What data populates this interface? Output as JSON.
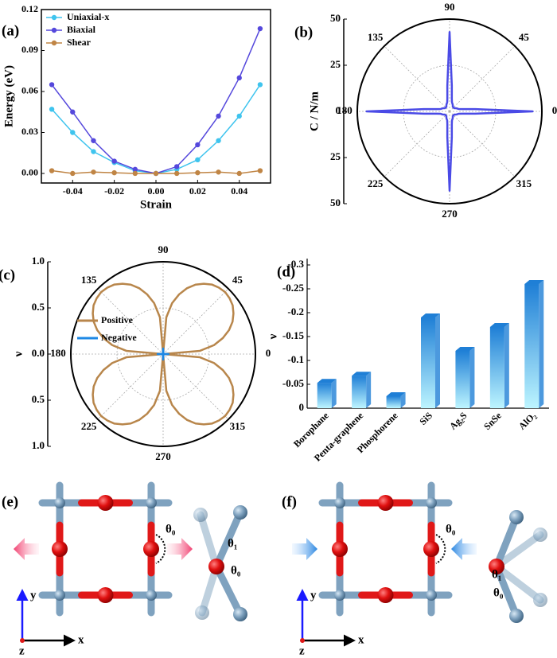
{
  "chart_data": [
    {
      "type": "line",
      "panel": "(a)",
      "xlabel": "Strain",
      "ylabel": "Energy (eV)",
      "x": [
        -0.05,
        -0.04,
        -0.03,
        -0.02,
        -0.01,
        0,
        0.01,
        0.02,
        0.03,
        0.04,
        0.05
      ],
      "series": [
        {
          "name": "Uniaxial-x",
          "color": "#3fc4ee",
          "values": [
            0.047,
            0.03,
            0.016,
            0.008,
            0.002,
            0,
            0.003,
            0.01,
            0.024,
            0.042,
            0.065
          ]
        },
        {
          "name": "Biaxial",
          "color": "#5548dc",
          "values": [
            0.065,
            0.045,
            0.024,
            0.009,
            0.003,
            0,
            0.005,
            0.021,
            0.042,
            0.07,
            0.106
          ]
        },
        {
          "name": "Shear",
          "color": "#c08545",
          "values": [
            0.002,
            0.0,
            0.001,
            0.0005,
            0.0,
            0,
            0.0,
            0.0005,
            0.001,
            0.0,
            0.002
          ]
        }
      ],
      "xlim": [
        -0.055,
        0.055
      ],
      "xticks": [
        -0.04,
        -0.02,
        {
          "value": 0,
          "label": "0.00"
        },
        0.02,
        0.04
      ],
      "ylim": [
        -0.007,
        0.12
      ],
      "yticks": [
        {
          "value": 0,
          "label": "0.00"
        },
        0.03,
        0.06,
        0.09,
        0.12
      ],
      "legend": "upper left"
    },
    {
      "type": "polar",
      "panel": "(b)",
      "ylabel": "C / N/m",
      "theta": [
        0,
        5,
        10,
        15,
        20,
        25,
        30,
        35,
        40,
        45,
        50,
        55,
        60,
        65,
        70,
        75,
        80,
        85,
        90,
        95,
        100,
        105,
        110,
        115,
        120,
        125,
        130,
        135,
        140,
        145,
        150,
        155,
        160,
        165,
        170,
        175,
        180,
        185,
        190,
        195,
        200,
        205,
        210,
        215,
        220,
        225,
        230,
        235,
        240,
        245,
        250,
        255,
        260,
        265,
        270,
        275,
        280,
        285,
        290,
        295,
        300,
        305,
        310,
        315,
        320,
        325,
        330,
        335,
        340,
        345,
        350,
        355
      ],
      "series": [
        {
          "name": null,
          "color": "#4a4ae6",
          "values": [
            45,
            14,
            7,
            5,
            4.5,
            4,
            3.5,
            3,
            3,
            3,
            3,
            3,
            3.5,
            4,
            4.5,
            5,
            7,
            14,
            43,
            14,
            7,
            5,
            4.5,
            4,
            3.5,
            3,
            3,
            3,
            3,
            3,
            3.5,
            4,
            4.5,
            5,
            7,
            14,
            45,
            14,
            7,
            5,
            4.5,
            4,
            3.5,
            3,
            3,
            3,
            3,
            3,
            3.5,
            4,
            4.5,
            5,
            7,
            14,
            43,
            14,
            7,
            5,
            4.5,
            4,
            3.5,
            3,
            3,
            3,
            3,
            3,
            3.5,
            4,
            4.5,
            5,
            7,
            14
          ]
        }
      ],
      "rlim": [
        0,
        50
      ],
      "rticks": [
        0,
        25,
        50
      ],
      "angle_ticks": [
        0,
        45,
        90,
        135,
        180,
        225,
        270,
        315
      ],
      "grid": true
    },
    {
      "type": "polar",
      "panel": "(c)",
      "ylabel": "ν",
      "theta": [
        0,
        5,
        10,
        15,
        20,
        25,
        30,
        35,
        40,
        45,
        50,
        55,
        60,
        65,
        70,
        75,
        80,
        85,
        90,
        95,
        100,
        105,
        110,
        115,
        120,
        125,
        130,
        135,
        140,
        145,
        150,
        155,
        160,
        165,
        170,
        175,
        180,
        185,
        190,
        195,
        200,
        205,
        210,
        215,
        220,
        225,
        230,
        235,
        240,
        245,
        250,
        255,
        260,
        265,
        270,
        275,
        280,
        285,
        290,
        295,
        300,
        305,
        310,
        315,
        320,
        325,
        330,
        335,
        340,
        345,
        350,
        355
      ],
      "series": [
        {
          "name": "Positive",
          "color": "#b8864b",
          "values": [
            0,
            0.4,
            0.56,
            0.67,
            0.76,
            0.83,
            0.88,
            0.92,
            0.94,
            0.95,
            0.94,
            0.92,
            0.88,
            0.83,
            0.76,
            0.67,
            0.56,
            0.4,
            0,
            0.4,
            0.56,
            0.67,
            0.76,
            0.83,
            0.88,
            0.92,
            0.94,
            0.95,
            0.94,
            0.92,
            0.88,
            0.83,
            0.76,
            0.67,
            0.56,
            0.4,
            0,
            0.4,
            0.56,
            0.67,
            0.76,
            0.83,
            0.88,
            0.92,
            0.94,
            0.95,
            0.94,
            0.92,
            0.88,
            0.83,
            0.76,
            0.67,
            0.56,
            0.4,
            0,
            0.4,
            0.56,
            0.67,
            0.76,
            0.83,
            0.88,
            0.92,
            0.94,
            0.95,
            0.94,
            0.92,
            0.88,
            0.83,
            0.76,
            0.67,
            0.56,
            0.4
          ]
        },
        {
          "name": "Negative",
          "color": "#1e88e5",
          "values": [
            0.06,
            0.03,
            0,
            0,
            0,
            0,
            0,
            0,
            0,
            0,
            0,
            0,
            0,
            0,
            0,
            0,
            0,
            0.03,
            0.06,
            0.03,
            0,
            0,
            0,
            0,
            0,
            0,
            0,
            0,
            0,
            0,
            0,
            0,
            0,
            0,
            0,
            0.03,
            0.06,
            0.03,
            0,
            0,
            0,
            0,
            0,
            0,
            0,
            0,
            0,
            0,
            0,
            0,
            0,
            0,
            0,
            0.03,
            0.06,
            0.03,
            0,
            0,
            0,
            0,
            0,
            0,
            0,
            0,
            0,
            0,
            0,
            0,
            0,
            0,
            0,
            0.03
          ]
        }
      ],
      "rlim": [
        0,
        1.0
      ],
      "rticks": [
        {
          "value": 0,
          "label": "0.0"
        },
        0.5,
        {
          "value": 1.0,
          "label": "1.0"
        }
      ],
      "angle_ticks": [
        0,
        45,
        90,
        135,
        180,
        225,
        270,
        315
      ],
      "grid": true,
      "legend": "center left"
    },
    {
      "type": "bar3d",
      "panel": "(d)",
      "ylabel": "ν",
      "categories": [
        "Borophane",
        "Penta-graphene",
        "Phosphorene",
        "SiS",
        "Ag₂S",
        "SnSe",
        "AlO₂"
      ],
      "values": [
        -0.053,
        -0.068,
        -0.025,
        -0.19,
        -0.12,
        -0.17,
        -0.26
      ],
      "gradient": [
        "#1f7fd6",
        "#bdf5ff"
      ],
      "ylim": [
        0,
        -0.3
      ],
      "yticks": [
        0,
        -0.05,
        -0.1,
        -0.15,
        -0.2,
        -0.25,
        -0.3
      ]
    }
  ],
  "diagrams": [
    {
      "panel": "(e)",
      "theta_lattice": "θ₀",
      "theta_side_1": "θ₁",
      "theta_side_0": "θ₀",
      "axes": {
        "x": "x",
        "y": "y",
        "z": "z"
      }
    },
    {
      "panel": "(f)",
      "theta_lattice": "θ₀",
      "theta_side_1": "θ₁",
      "theta_side_0": "θ₀",
      "axes": {
        "x": "x",
        "y": "y",
        "z": "z"
      }
    }
  ]
}
